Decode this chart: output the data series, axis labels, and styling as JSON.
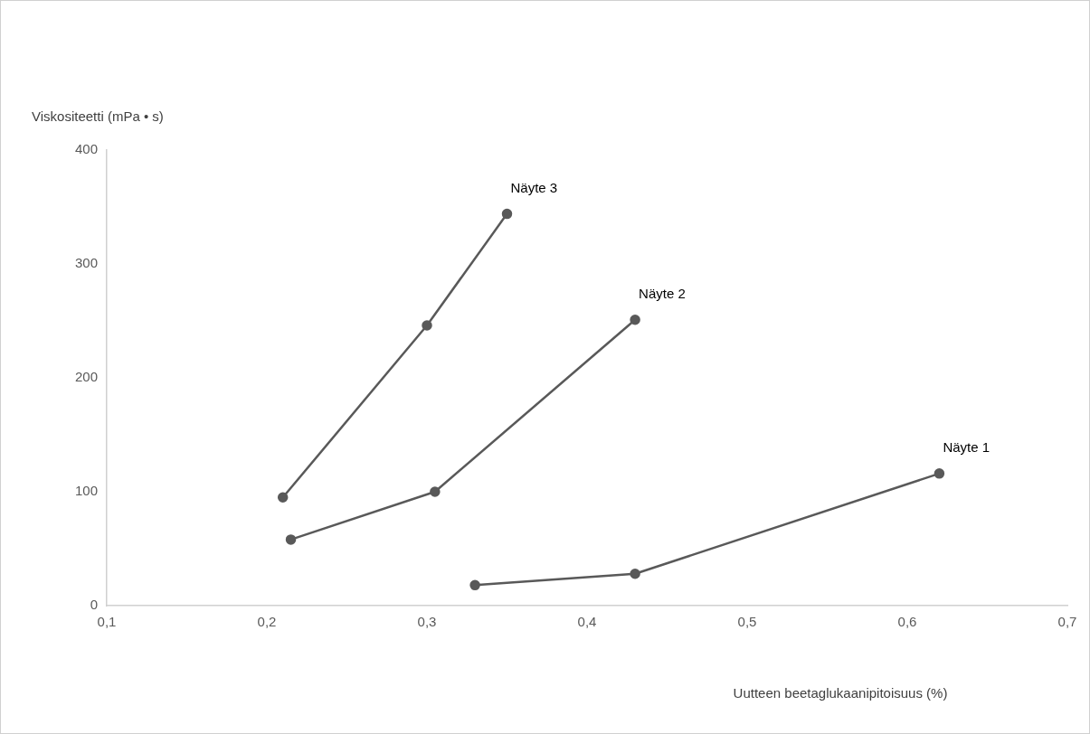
{
  "chart_data": {
    "type": "line",
    "xlabel": "Uutteen beetaglukaanipitoisuus (%)",
    "ylabel": "Viskositeetti (mPa • s)",
    "xlim": [
      0.1,
      0.7
    ],
    "xticks": [
      {
        "value": 0.1,
        "label": "0,1"
      },
      {
        "value": 0.2,
        "label": "0,2"
      },
      {
        "value": 0.3,
        "label": "0,3"
      },
      {
        "value": 0.4,
        "label": "0,4"
      },
      {
        "value": 0.5,
        "label": "0,5"
      },
      {
        "value": 0.6,
        "label": "0,6"
      },
      {
        "value": 0.7,
        "label": "0,7"
      }
    ],
    "ylim": [
      0,
      400
    ],
    "yticks": [
      0,
      100,
      200,
      300,
      400
    ],
    "grid": false,
    "legend": false,
    "marker": "circle",
    "line_style": "solid",
    "series": [
      {
        "name": "Näyte 1",
        "color": "#595959",
        "x": [
          0.33,
          0.43,
          0.62
        ],
        "values": [
          18,
          28,
          116
        ]
      },
      {
        "name": "Näyte 2",
        "color": "#595959",
        "x": [
          0.215,
          0.305,
          0.43
        ],
        "values": [
          58,
          100,
          251
        ]
      },
      {
        "name": "Näyte 3",
        "color": "#595959",
        "x": [
          0.21,
          0.3,
          0.35
        ],
        "values": [
          95,
          246,
          344
        ]
      }
    ]
  }
}
